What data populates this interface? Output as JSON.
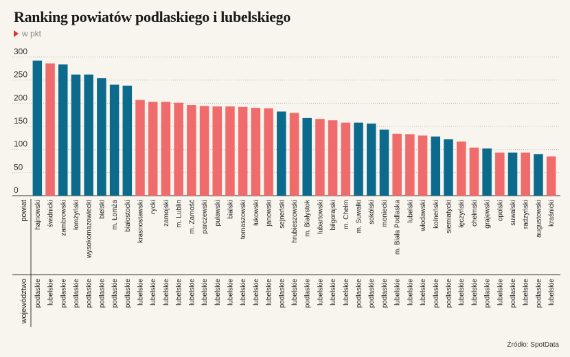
{
  "title": "Ranking powiatów podlaskiego i lubelskiego",
  "subtitle": "w pkt",
  "source": "Źródło: SpotData",
  "colors": {
    "podlaskie": "#0c6a8c",
    "lubelskie": "#f06b6b"
  },
  "row_labels": {
    "category": "powiat",
    "group": "województwo"
  },
  "chart_data": {
    "type": "bar",
    "ylim": [
      0,
      300
    ],
    "yticks": [
      0,
      50,
      100,
      150,
      200,
      250,
      300
    ],
    "grid": true,
    "categories": [
      "hajnowski",
      "świdnicki",
      "zambrowski",
      "łomżyński",
      "wysokomazowiecki",
      "bielski",
      "m. Łomża",
      "białostocki",
      "krasnostawski",
      "rycki",
      "zamojski",
      "m. Lublin",
      "m. Zamość",
      "parczewski",
      "puławski",
      "bialski",
      "tomaszowski",
      "łukowski",
      "janowski",
      "sejneński",
      "hrubieszowski",
      "m. Białystok",
      "lubartowski",
      "biłgorajski",
      "m. Chełm",
      "m. Suwałki",
      "sokólski",
      "moniecki",
      "m. Biała Podlaska",
      "lubelski",
      "włodawski",
      "kolneński",
      "siemiatycki",
      "łęczyński",
      "chełmski",
      "grajewski",
      "opolski",
      "suwalski",
      "radzyński",
      "augustowski",
      "kraśnicki"
    ],
    "groups": [
      "podlaskie",
      "lubelskie",
      "podlaskie",
      "podlaskie",
      "podlaskie",
      "podlaskie",
      "podlaskie",
      "podlaskie",
      "lubelskie",
      "lubelskie",
      "lubelskie",
      "lubelskie",
      "lubelskie",
      "lubelskie",
      "lubelskie",
      "lubelskie",
      "lubelskie",
      "lubelskie",
      "lubelskie",
      "podlaskie",
      "lubelskie",
      "podlaskie",
      "lubelskie",
      "lubelskie",
      "lubelskie",
      "podlaskie",
      "podlaskie",
      "podlaskie",
      "lubelskie",
      "lubelskie",
      "lubelskie",
      "podlaskie",
      "podlaskie",
      "lubelskie",
      "lubelskie",
      "podlaskie",
      "lubelskie",
      "podlaskie",
      "lubelskie",
      "podlaskie",
      "lubelskie"
    ],
    "values": [
      292,
      286,
      284,
      262,
      262,
      254,
      240,
      238,
      207,
      203,
      203,
      201,
      196,
      194,
      193,
      193,
      192,
      190,
      189,
      182,
      179,
      168,
      166,
      163,
      158,
      158,
      156,
      143,
      134,
      133,
      130,
      128,
      122,
      117,
      104,
      102,
      93,
      93,
      93,
      90,
      85
    ]
  }
}
